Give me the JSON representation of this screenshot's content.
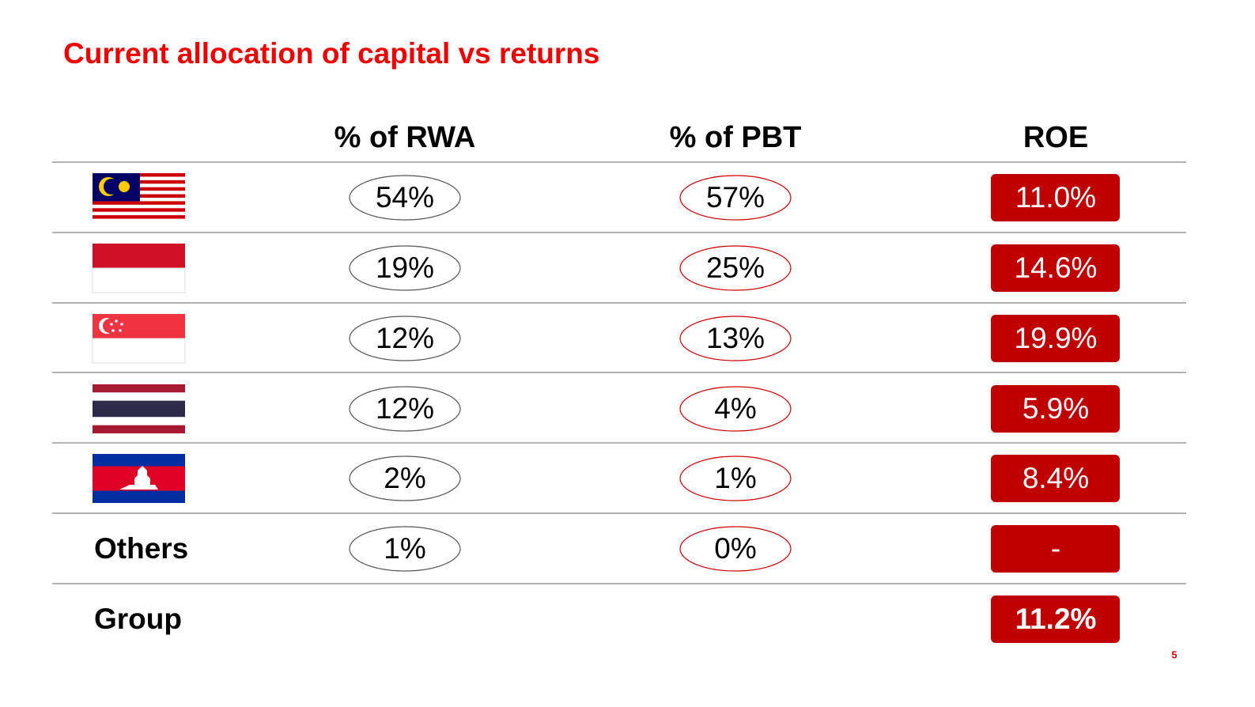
{
  "title": "Current allocation of capital vs returns",
  "table": {
    "headers": [
      "% of RWA",
      "% of PBT",
      "ROE"
    ],
    "rows": [
      {
        "rwa": "54%",
        "pbt": "57%",
        "roe": "11.0%"
      },
      {
        "rwa": "19%",
        "pbt": "25%",
        "roe": "14.6%"
      },
      {
        "rwa": "12%",
        "pbt": "13%",
        "roe": "19.9%"
      },
      {
        "rwa": "12%",
        "pbt": "4%",
        "roe": "5.9%"
      },
      {
        "rwa": "2%",
        "pbt": "1%",
        "roe": "8.4%"
      },
      {
        "label": "Others",
        "rwa": "1%",
        "pbt": "0%",
        "roe": "-"
      },
      {
        "label": "Group",
        "roe": "11.2%"
      }
    ]
  },
  "page_number": "5"
}
